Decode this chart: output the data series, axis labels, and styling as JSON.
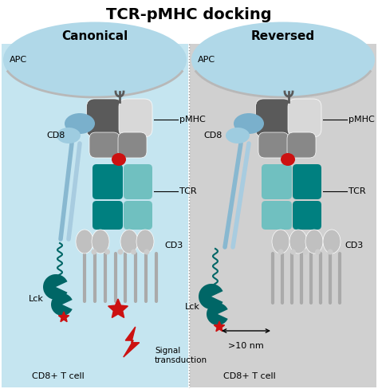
{
  "title": "TCR-pMHC docking",
  "left_label": "Canonical",
  "right_label": "Reversed",
  "apc_label": "APC",
  "cd8_label": "CD8",
  "pmhc_label": "pMHC",
  "tcr_label": "TCR",
  "cd3_label": "CD3",
  "lck_label": "Lck",
  "signal_label": "Signal\ntransduction",
  "distance_label": ">10 nm",
  "tcell_label": "CD8+ T cell",
  "bg_color": "#ffffff",
  "apc_color": "#b0d8e8",
  "apc_border": "#a0c8d8",
  "tcell_color_left": "#c5e5f0",
  "tcell_color_right": "#d0d0d0",
  "gray_dark": "#5a5a5a",
  "gray_mid": "#888888",
  "gray_light": "#c0c0c0",
  "gray_lighter": "#d8d8d8",
  "teal_dark": "#008080",
  "teal_light": "#70c0c0",
  "teal_lck": "#006666",
  "cd8_blue": "#7ab0cc",
  "cd8_blue2": "#9ecce0",
  "red": "#cc1111",
  "red_star": "#cc1111",
  "divider_color": "#999999",
  "line_color": "#aaaaaa"
}
